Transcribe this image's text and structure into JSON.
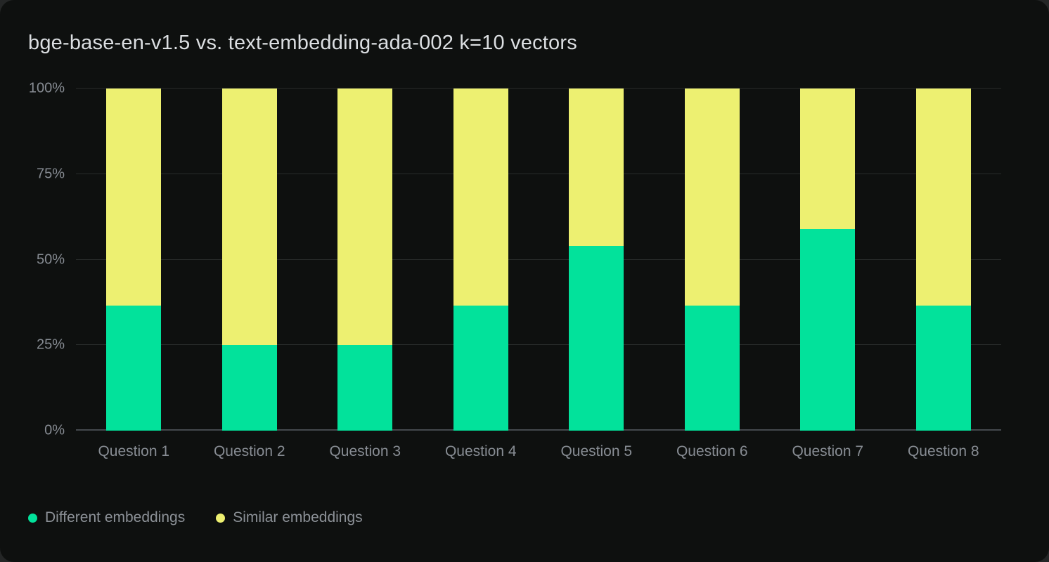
{
  "page": {
    "title": "bge-base-en-v1.5 vs. text-embedding-ada-002 k=10 vectors"
  },
  "chart_data": {
    "type": "bar",
    "variant": "stacked-percent-column",
    "title": "bge-base-en-v1.5 vs. text-embedding-ada-002 k=10 vectors",
    "categories": [
      "Question 1",
      "Question 2",
      "Question 3",
      "Question 4",
      "Question 5",
      "Question 6",
      "Question 7",
      "Question 8"
    ],
    "series": [
      {
        "name": "Different embeddings",
        "color": "#02E29B",
        "values": [
          36.6,
          25,
          25,
          36.6,
          54,
          36.6,
          59,
          36.6
        ]
      },
      {
        "name": "Similar embeddings",
        "color": "#EDF071",
        "values": [
          63.4,
          75,
          75,
          63.4,
          46,
          63.4,
          41,
          63.4
        ]
      }
    ],
    "ylim": [
      0,
      100
    ],
    "y_ticks": [
      "0%",
      "25%",
      "50%",
      "75%",
      "100%"
    ],
    "xlabel": "",
    "ylabel": "",
    "grid": true,
    "legend_position": "bottom-left"
  },
  "legend": {
    "items": [
      {
        "label": "Different embeddings",
        "color": "#02E29B"
      },
      {
        "label": "Similar embeddings",
        "color": "#EDF071"
      }
    ]
  },
  "colors": {
    "page_background": "#242626",
    "card_background": "#0E100F",
    "title_text": "#DCDFE2",
    "axis_text": "#878C93",
    "gridline": "#282B2A",
    "axis_line": "#44484D",
    "series_different": "#02E29B",
    "series_similar": "#EDF071"
  }
}
